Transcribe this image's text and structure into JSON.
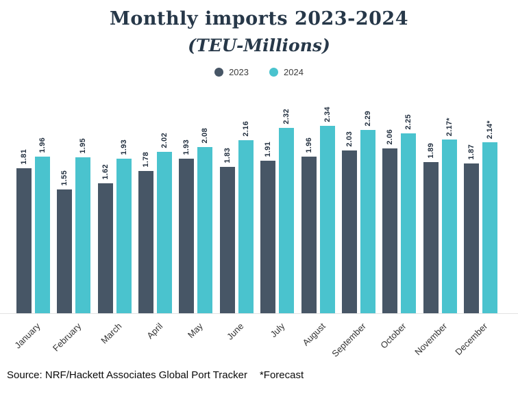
{
  "chart_data": {
    "type": "bar",
    "title": "Monthly imports 2023-2024",
    "subtitle": "(TEU-Millions)",
    "xlabel": "",
    "ylabel": "",
    "ylim": [
      0,
      2.5
    ],
    "grid": false,
    "legend_position": "top",
    "categories": [
      "January",
      "February",
      "March",
      "April",
      "May",
      "June",
      "July",
      "August",
      "September",
      "October",
      "November",
      "December"
    ],
    "series": [
      {
        "name": "2023",
        "color": "#475666",
        "values": [
          1.81,
          1.55,
          1.62,
          1.78,
          1.93,
          1.83,
          1.91,
          1.96,
          2.03,
          2.06,
          1.89,
          1.87
        ],
        "labels": [
          "1.81",
          "1.55",
          "1.62",
          "1.78",
          "1.93",
          "1.83",
          "1.91",
          "1.96",
          "2.03",
          "2.06",
          "1.89",
          "1.87"
        ]
      },
      {
        "name": "2024",
        "color": "#4ac3ce",
        "values": [
          1.96,
          1.95,
          1.93,
          2.02,
          2.08,
          2.16,
          2.32,
          2.34,
          2.29,
          2.25,
          2.17,
          2.14
        ],
        "labels": [
          "1.96",
          "1.95",
          "1.93",
          "2.02",
          "2.08",
          "2.16",
          "2.32",
          "2.34",
          "2.29",
          "2.25",
          "2.17*",
          "2.14*"
        ]
      }
    ],
    "source": "Source: NRF/Hackett Associates Global Port Tracker",
    "footnote": "*Forecast"
  }
}
